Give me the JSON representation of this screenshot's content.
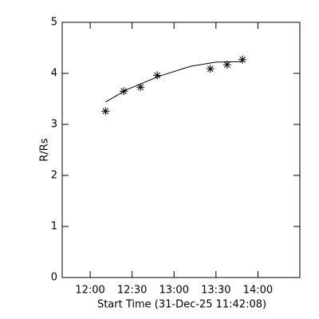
{
  "chart_data": {
    "type": "line",
    "xlabel": "Start Time (31-Dec-25 11:42:08)",
    "ylabel": "R/Rs",
    "xlim": [
      700,
      870
    ],
    "xticks": [
      {
        "value": 720,
        "label": "12:00"
      },
      {
        "value": 750,
        "label": "12:30"
      },
      {
        "value": 780,
        "label": "13:00"
      },
      {
        "value": 810,
        "label": "13:30"
      },
      {
        "value": 840,
        "label": "14:00"
      }
    ],
    "ylim": [
      0,
      5
    ],
    "yticks": [
      0,
      1,
      2,
      3,
      4,
      5
    ],
    "series": [
      {
        "x": [
          731,
          744,
          756,
          768,
          806,
          818,
          829
        ],
        "values": [
          3.26,
          3.65,
          3.73,
          3.96,
          4.09,
          4.17,
          4.27
        ],
        "color": "#000000",
        "marker": "asterisk",
        "line": false
      },
      {
        "x": [
          731,
          747,
          770,
          792,
          810,
          829
        ],
        "values": [
          3.44,
          3.69,
          3.95,
          4.14,
          4.22,
          4.23
        ],
        "color": "#000000",
        "marker": null,
        "line": true
      }
    ]
  }
}
